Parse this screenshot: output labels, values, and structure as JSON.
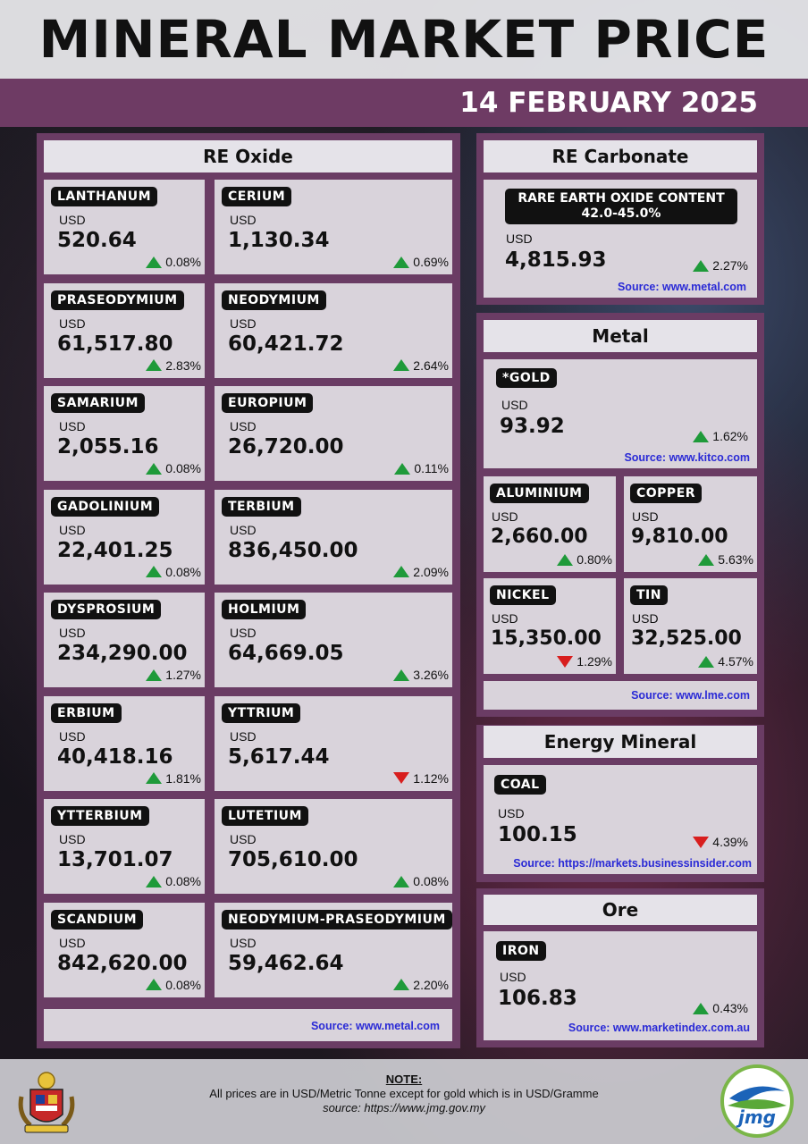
{
  "header": {
    "title": "MINERAL MARKET PRICE",
    "date": "14 FEBRUARY 2025"
  },
  "re_oxide": {
    "heading": "RE Oxide",
    "source": "Source: www.metal.com",
    "items": [
      {
        "name": "LANTHANUM",
        "unit": "USD",
        "price": "520.64",
        "change": "0.08%",
        "dir": "up"
      },
      {
        "name": "CERIUM",
        "unit": "USD",
        "price": "1,130.34",
        "change": "0.69%",
        "dir": "up"
      },
      {
        "name": "PRASEODYMIUM",
        "unit": "USD",
        "price": "61,517.80",
        "change": "2.83%",
        "dir": "up"
      },
      {
        "name": "NEODYMIUM",
        "unit": "USD",
        "price": "60,421.72",
        "change": "2.64%",
        "dir": "up"
      },
      {
        "name": "SAMARIUM",
        "unit": "USD",
        "price": "2,055.16",
        "change": "0.08%",
        "dir": "up"
      },
      {
        "name": "EUROPIUM",
        "unit": "USD",
        "price": "26,720.00",
        "change": "0.11%",
        "dir": "up"
      },
      {
        "name": "GADOLINIUM",
        "unit": "USD",
        "price": "22,401.25",
        "change": "0.08%",
        "dir": "up"
      },
      {
        "name": "TERBIUM",
        "unit": "USD",
        "price": "836,450.00",
        "change": "2.09%",
        "dir": "up"
      },
      {
        "name": "DYSPROSIUM",
        "unit": "USD",
        "price": "234,290.00",
        "change": "1.27%",
        "dir": "up"
      },
      {
        "name": "HOLMIUM",
        "unit": "USD",
        "price": "64,669.05",
        "change": "3.26%",
        "dir": "up"
      },
      {
        "name": "ERBIUM",
        "unit": "USD",
        "price": "40,418.16",
        "change": "1.81%",
        "dir": "up"
      },
      {
        "name": "YTTRIUM",
        "unit": "USD",
        "price": "5,617.44",
        "change": "1.12%",
        "dir": "down"
      },
      {
        "name": "YTTERBIUM",
        "unit": "USD",
        "price": "13,701.07",
        "change": "0.08%",
        "dir": "up"
      },
      {
        "name": "LUTETIUM",
        "unit": "USD",
        "price": "705,610.00",
        "change": "0.08%",
        "dir": "up"
      },
      {
        "name": "SCANDIUM",
        "unit": "USD",
        "price": "842,620.00",
        "change": "0.08%",
        "dir": "up"
      },
      {
        "name": "NEODYMIUM-PRASEODYMIUM",
        "unit": "USD",
        "price": "59,462.64",
        "change": "2.20%",
        "dir": "up"
      }
    ]
  },
  "re_carbonate": {
    "heading": "RE Carbonate",
    "label_line1": "RARE EARTH OXIDE CONTENT",
    "label_line2": "42.0-45.0%",
    "unit": "USD",
    "price": "4,815.93",
    "change": "2.27%",
    "dir": "up",
    "source": "Source: www.metal.com"
  },
  "metal": {
    "heading": "Metal",
    "gold": {
      "name": "*GOLD",
      "unit": "USD",
      "price": "93.92",
      "change": "1.62%",
      "dir": "up",
      "source": "Source: www.kitco.com"
    },
    "items": [
      {
        "name": "ALUMINIUM",
        "unit": "USD",
        "price": "2,660.00",
        "change": "0.80%",
        "dir": "up"
      },
      {
        "name": "COPPER",
        "unit": "USD",
        "price": "9,810.00",
        "change": "5.63%",
        "dir": "up"
      },
      {
        "name": "NICKEL",
        "unit": "USD",
        "price": "15,350.00",
        "change": "1.29%",
        "dir": "down"
      },
      {
        "name": "TIN",
        "unit": "USD",
        "price": "32,525.00",
        "change": "4.57%",
        "dir": "up"
      }
    ],
    "source": "Source: www.lme.com"
  },
  "energy": {
    "heading": "Energy Mineral",
    "name": "COAL",
    "unit": "USD",
    "price": "100.15",
    "change": "4.39%",
    "dir": "down",
    "source": "Source: https://markets.businessinsider.com"
  },
  "ore": {
    "heading": "Ore",
    "name": "IRON",
    "unit": "USD",
    "price": "106.83",
    "change": "0.43%",
    "dir": "up",
    "source": "Source: www.marketindex.com.au"
  },
  "footer": {
    "note_title": "NOTE:",
    "note_text": "All prices are in USD/Metric Tonne except for gold which is in USD/Gramme",
    "note_source": "source: https://www.jmg.gov.my",
    "logo_right_text": "jmg"
  },
  "colors": {
    "panel": "#6a3c64",
    "date_bar": "#6e3b64",
    "up": "#1f9a3a",
    "down": "#d81e1e",
    "source_link": "#2a2ad6"
  }
}
